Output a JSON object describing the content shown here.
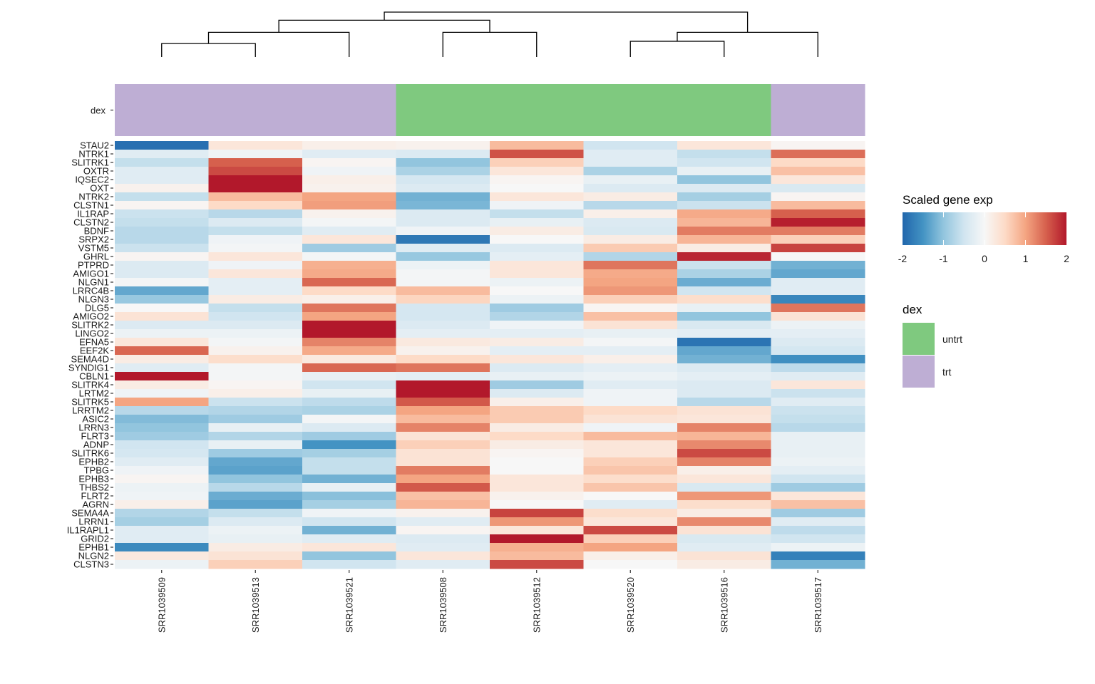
{
  "chart_data": {
    "type": "heatmap",
    "title": "",
    "xlabel": "",
    "ylabel": "",
    "columns": [
      "SRR1039509",
      "SRR1039513",
      "SRR1039521",
      "SRR1039508",
      "SRR1039512",
      "SRR1039520",
      "SRR1039516",
      "SRR1039517"
    ],
    "rows": [
      "STAU2",
      "NTRK1",
      "SLITRK1",
      "OXTR",
      "IQSEC2",
      "OXT",
      "NTRK2",
      "CLSTN1",
      "IL1RAP",
      "CLSTN2",
      "BDNF",
      "SRPX2",
      "VSTM5",
      "GHRL",
      "PTPRD",
      "AMIGO1",
      "NLGN1",
      "LRRC4B",
      "NLGN3",
      "DLG5",
      "AMIGO2",
      "SLITRK2",
      "LINGO2",
      "EFNA5",
      "EEF2K",
      "SEMA4D",
      "SYNDIG1",
      "CBLN1",
      "SLITRK4",
      "LRTM2",
      "SLITRK5",
      "LRRTM2",
      "ASIC2",
      "LRRN3",
      "FLRT3",
      "ADNP",
      "SLITRK6",
      "EPHB2",
      "TPBG",
      "EPHB3",
      "THBS2",
      "FLRT2",
      "AGRN",
      "SEMA4A",
      "LRRN1",
      "IL1RAPL1",
      "GRID2",
      "EPHB1",
      "NLGN2",
      "CLSTN3"
    ],
    "values": [
      [
        -1.9,
        0.3,
        0.15,
        0.1,
        0.8,
        -0.5,
        0.3,
        0.05
      ],
      [
        -0.3,
        -0.1,
        -0.3,
        -0.35,
        1.6,
        -0.3,
        -0.6,
        1.4
      ],
      [
        -0.6,
        1.5,
        0.05,
        -1.0,
        0.6,
        -0.3,
        -0.5,
        0.5
      ],
      [
        -0.3,
        1.65,
        -0.1,
        -0.8,
        0.3,
        -0.8,
        -0.2,
        0.75
      ],
      [
        -0.3,
        2.0,
        0.15,
        -0.45,
        0.05,
        -0.2,
        -1.0,
        0.3
      ],
      [
        0.1,
        2.0,
        0.1,
        -0.35,
        0.0,
        -0.35,
        -0.35,
        -0.4
      ],
      [
        -0.6,
        0.8,
        1.0,
        -1.2,
        0.3,
        0.2,
        -0.85,
        0.05
      ],
      [
        0.05,
        0.5,
        1.05,
        -1.15,
        -0.1,
        -0.7,
        -0.55,
        0.8
      ],
      [
        -0.55,
        -0.7,
        0.1,
        -0.35,
        -0.6,
        0.15,
        0.95,
        1.5
      ],
      [
        -0.6,
        -0.35,
        -0.05,
        -0.35,
        -0.2,
        -0.35,
        0.85,
        1.95
      ],
      [
        -0.7,
        -0.6,
        -0.3,
        -0.1,
        0.2,
        -0.4,
        1.3,
        1.3
      ],
      [
        -0.7,
        -0.1,
        0.3,
        -1.8,
        0.0,
        0.2,
        0.85,
        0.6
      ],
      [
        -0.55,
        -0.05,
        -0.9,
        -0.3,
        -0.35,
        0.65,
        0.2,
        1.7
      ],
      [
        0.05,
        0.3,
        -0.05,
        -0.95,
        -0.25,
        -0.75,
        1.9,
        0.0
      ],
      [
        -0.35,
        -0.1,
        0.9,
        -0.15,
        0.3,
        1.35,
        -0.55,
        -1.2
      ],
      [
        -0.35,
        0.3,
        0.95,
        -0.05,
        0.3,
        0.95,
        -0.8,
        -1.3
      ],
      [
        -0.05,
        -0.25,
        1.45,
        -0.05,
        -0.15,
        1.0,
        -1.25,
        -0.3
      ],
      [
        -1.3,
        -0.25,
        0.5,
        0.8,
        0.0,
        1.1,
        -0.5,
        -0.3
      ],
      [
        -0.95,
        0.2,
        0.15,
        0.55,
        -0.15,
        0.6,
        0.45,
        -1.65
      ],
      [
        0.0,
        -0.6,
        1.35,
        -0.45,
        -0.9,
        0.05,
        -0.2,
        1.35
      ],
      [
        0.35,
        -0.5,
        1.0,
        -0.45,
        -0.75,
        0.75,
        -1.0,
        0.35
      ],
      [
        -0.35,
        -0.35,
        2.0,
        -0.35,
        -0.1,
        0.35,
        -0.4,
        -0.15
      ],
      [
        -0.15,
        -0.15,
        2.0,
        -0.25,
        -0.25,
        -0.2,
        -0.25,
        -0.25
      ],
      [
        0.3,
        -0.05,
        1.25,
        0.25,
        0.2,
        -0.05,
        -1.85,
        -0.35
      ],
      [
        1.45,
        0.1,
        0.95,
        0.1,
        -0.25,
        -0.25,
        -1.3,
        -0.45
      ],
      [
        0.2,
        0.45,
        0.25,
        0.5,
        0.3,
        0.15,
        -1.2,
        -1.55
      ],
      [
        -0.3,
        -0.05,
        1.45,
        1.35,
        -0.35,
        -0.25,
        -0.35,
        -0.65
      ],
      [
        2.0,
        -0.05,
        -0.2,
        -0.25,
        -0.2,
        -0.15,
        -0.25,
        -0.3
      ],
      [
        0.2,
        0.05,
        -0.5,
        2.0,
        -0.9,
        -0.3,
        -0.35,
        0.3
      ],
      [
        -0.1,
        0.15,
        -0.2,
        2.0,
        -0.35,
        -0.1,
        -0.35,
        -0.55
      ],
      [
        1.0,
        -0.55,
        -0.65,
        1.55,
        0.15,
        -0.1,
        -0.7,
        -0.3
      ],
      [
        -0.7,
        -0.75,
        -0.8,
        1.0,
        0.65,
        0.5,
        0.35,
        -0.55
      ],
      [
        -1.1,
        -0.9,
        -0.05,
        0.8,
        0.65,
        0.35,
        0.3,
        -0.6
      ],
      [
        -1.0,
        -0.2,
        -0.35,
        1.25,
        0.2,
        -0.1,
        1.25,
        -0.7
      ],
      [
        -0.9,
        -0.75,
        -0.9,
        0.35,
        0.5,
        0.8,
        0.85,
        -0.2
      ],
      [
        -0.5,
        -0.2,
        -1.5,
        0.6,
        0.2,
        0.3,
        1.2,
        -0.2
      ],
      [
        -0.45,
        -0.9,
        -0.85,
        0.35,
        0.05,
        0.3,
        1.65,
        -0.2
      ],
      [
        -0.3,
        -1.3,
        -0.6,
        0.35,
        0.0,
        0.6,
        1.25,
        -0.15
      ],
      [
        -0.1,
        -1.35,
        -0.6,
        1.3,
        0.0,
        0.7,
        0.15,
        -0.25
      ],
      [
        0.05,
        -1.0,
        -1.2,
        1.0,
        0.3,
        0.45,
        0.3,
        -0.5
      ],
      [
        -0.15,
        -0.7,
        -0.2,
        1.55,
        0.3,
        0.7,
        -0.4,
        -0.9
      ],
      [
        -0.1,
        -1.25,
        -1.05,
        0.75,
        0.1,
        0.0,
        1.1,
        0.3
      ],
      [
        0.15,
        -1.35,
        -0.85,
        0.85,
        0.0,
        -0.3,
        0.45,
        0.75
      ],
      [
        -0.75,
        -0.6,
        -0.1,
        0.1,
        1.7,
        0.45,
        0.2,
        -0.9
      ],
      [
        -0.85,
        -0.35,
        -0.5,
        -0.3,
        1.1,
        0.3,
        1.2,
        -0.3
      ],
      [
        -0.3,
        -0.15,
        -1.2,
        0.05,
        0.3,
        1.65,
        0.35,
        -0.65
      ],
      [
        -0.3,
        -0.2,
        -0.3,
        -0.35,
        2.0,
        0.6,
        -0.4,
        -0.5
      ],
      [
        -1.6,
        0.2,
        0.3,
        -0.3,
        0.9,
        1.0,
        -0.3,
        -0.15
      ],
      [
        0.25,
        0.35,
        -1.0,
        0.3,
        0.8,
        0.15,
        0.35,
        -1.7
      ],
      [
        -0.15,
        0.6,
        -0.5,
        -0.3,
        1.65,
        0.0,
        0.2,
        -1.2
      ]
    ],
    "annotation": {
      "name": "dex",
      "values": [
        "trt",
        "trt",
        "trt",
        "untrt",
        "untrt",
        "untrt",
        "untrt",
        "trt"
      ],
      "colors": {
        "untrt": "#7FC97F",
        "trt": "#BEAED4"
      }
    },
    "dendrogram": {
      "merges": [
        {
          "left": [
            0
          ],
          "right": [
            1
          ],
          "height": 0.3
        },
        {
          "left": [
            0,
            1
          ],
          "right": [
            2
          ],
          "height": 0.55
        },
        {
          "left": [
            3
          ],
          "right": [
            4
          ],
          "height": 0.55
        },
        {
          "left": [
            5
          ],
          "right": [
            6
          ],
          "height": 0.35
        },
        {
          "left": [
            5,
            6
          ],
          "right": [
            7
          ],
          "height": 0.55
        },
        {
          "left": [
            0,
            1,
            2
          ],
          "right": [
            3,
            4
          ],
          "height": 0.82
        },
        {
          "left": [
            0,
            1,
            2,
            3,
            4
          ],
          "right": [
            5,
            6,
            7
          ],
          "height": 1.0
        }
      ]
    },
    "color_scale": {
      "title": "Scaled gene exp",
      "range": [
        -2,
        2
      ],
      "ticks": [
        "-2",
        "-1",
        "0",
        "1",
        "2"
      ],
      "stops": [
        "#2166AC",
        "#4393C3",
        "#92C5DE",
        "#D1E5F0",
        "#F7F7F7",
        "#FDDBC7",
        "#F4A582",
        "#D6604D",
        "#B2182B"
      ]
    },
    "legend": {
      "scale_position": "right",
      "annotation_title": "dex",
      "annotation_items": [
        {
          "label": "untrt",
          "color": "#7FC97F"
        },
        {
          "label": "trt",
          "color": "#BEAED4"
        }
      ]
    }
  }
}
